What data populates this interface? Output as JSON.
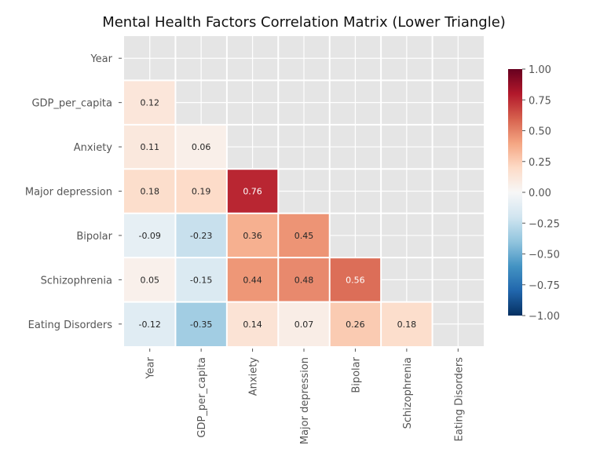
{
  "chart_data": {
    "type": "heatmap",
    "title": "Mental Health Factors Correlation Matrix (Lower Triangle)",
    "row_labels": [
      "Year",
      "GDP_per_capita",
      "Anxiety",
      "Major depression",
      "Bipolar",
      "Schizophrenia",
      "Eating Disorders"
    ],
    "col_labels": [
      "Year",
      "GDP_per_capita",
      "Anxiety",
      "Major depression",
      "Bipolar",
      "Schizophrenia",
      "Eating Disorders"
    ],
    "values": [
      [
        null,
        null,
        null,
        null,
        null,
        null,
        null
      ],
      [
        0.12,
        null,
        null,
        null,
        null,
        null,
        null
      ],
      [
        0.11,
        0.06,
        null,
        null,
        null,
        null,
        null
      ],
      [
        0.18,
        0.19,
        0.76,
        null,
        null,
        null,
        null
      ],
      [
        -0.09,
        -0.23,
        0.36,
        0.45,
        null,
        null,
        null
      ],
      [
        0.05,
        -0.15,
        0.44,
        0.48,
        0.56,
        null,
        null
      ],
      [
        -0.12,
        -0.35,
        0.14,
        0.07,
        0.26,
        0.18,
        null
      ]
    ],
    "value_labels": [
      [
        null,
        null,
        null,
        null,
        null,
        null,
        null
      ],
      [
        "0.12",
        null,
        null,
        null,
        null,
        null,
        null
      ],
      [
        "0.11",
        "0.06",
        null,
        null,
        null,
        null,
        null
      ],
      [
        "0.18",
        "0.19",
        "0.76",
        null,
        null,
        null,
        null
      ],
      [
        "-0.09",
        "-0.23",
        "0.36",
        "0.45",
        null,
        null,
        null
      ],
      [
        "0.05",
        "-0.15",
        "0.44",
        "0.48",
        "0.56",
        null,
        null
      ],
      [
        "-0.12",
        "-0.35",
        "0.14",
        "0.07",
        "0.26",
        "0.18",
        null
      ]
    ],
    "colormap": "RdBu_r",
    "vmin": -1.0,
    "vmax": 1.0,
    "colorbar_ticks": [
      1.0,
      0.75,
      0.5,
      0.25,
      0.0,
      -0.25,
      -0.5,
      -0.75,
      -1.0
    ],
    "colorbar_tick_labels": [
      "1.00",
      "0.75",
      "0.50",
      "0.25",
      "0.00",
      "−0.25",
      "−0.50",
      "−0.75",
      "−1.00"
    ],
    "colorbar_placement": "right",
    "grid": true
  },
  "colors": {
    "background": "#ffffff",
    "masked_cell": "#e5e5e5",
    "grid_line": "#ffffff",
    "text": "#222222",
    "tick_text": "#555555"
  }
}
